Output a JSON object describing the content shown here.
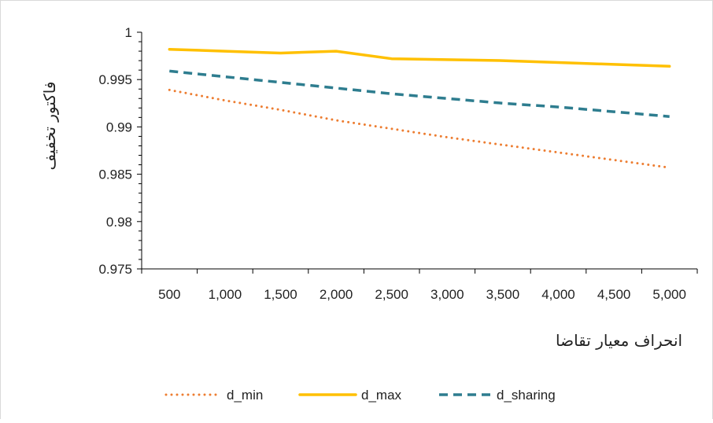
{
  "chart_data": {
    "type": "line",
    "title": "",
    "xlabel": "انحراف معیار تقاضا",
    "ylabel": "فاکتور تخفیف",
    "x": [
      500,
      1000,
      1500,
      2000,
      2500,
      3000,
      3500,
      4000,
      4500,
      5000
    ],
    "x_tick_labels": [
      "500",
      "1,000",
      "1,500",
      "2,000",
      "2,500",
      "3,000",
      "3,500",
      "4,000",
      "4,500",
      "5,000"
    ],
    "ylim": [
      0.975,
      1
    ],
    "y_ticks": [
      0.975,
      0.98,
      0.985,
      0.99,
      0.995,
      1
    ],
    "y_tick_labels": [
      "0.975",
      "0.98",
      "0.985",
      "0.99",
      "0.995",
      "1"
    ],
    "grid": false,
    "legend_position": "bottom",
    "series": [
      {
        "name": "d_min",
        "style": "dotted",
        "color": "#ED7D31",
        "values": [
          0.9939,
          0.9928,
          0.9918,
          0.9907,
          0.9898,
          0.9889,
          0.9881,
          0.9873,
          0.9865,
          0.9857
        ]
      },
      {
        "name": "d_max",
        "style": "solid",
        "color": "#FFC000",
        "values": [
          0.9982,
          0.998,
          0.9978,
          0.998,
          0.9972,
          0.9971,
          0.997,
          0.9968,
          0.9966,
          0.9964
        ]
      },
      {
        "name": "d_sharing",
        "style": "dashed",
        "color": "#2E7D8F",
        "values": [
          0.9959,
          0.9953,
          0.9947,
          0.9941,
          0.9935,
          0.993,
          0.9925,
          0.9921,
          0.9916,
          0.9911
        ]
      }
    ]
  }
}
